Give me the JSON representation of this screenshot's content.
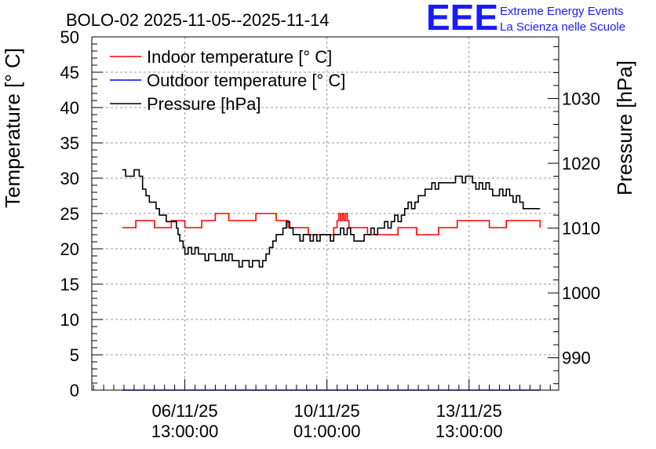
{
  "chart_data": {
    "type": "line",
    "title": "BOLO-02 2025-11-05--2025-11-14",
    "ylabel": "Temperature [° C]",
    "y2label": "Pressure [hPa]",
    "ylim": [
      0,
      50
    ],
    "y2lim": [
      985,
      1039.5
    ],
    "yticks": [
      "0",
      "5",
      "10",
      "15",
      "20",
      "25",
      "30",
      "35",
      "40",
      "45",
      "50"
    ],
    "y2ticks": [
      "990",
      "1000",
      "1010",
      "1020",
      "1030"
    ],
    "x_tick_labels": [
      {
        "date": "06/11/25",
        "time": "13:00:00",
        "x": 0
      },
      {
        "date": "10/11/25",
        "time": "01:00:00",
        "x": 84
      },
      {
        "date": "13/11/25",
        "time": "13:00:00",
        "x": 168
      }
    ],
    "xlim": [
      -55,
      221
    ],
    "x_unit": "hours from 06/11/25 13:00:00",
    "grid": true,
    "legend_position": "top-left",
    "series": [
      {
        "name": "Indoor temperature [° C]",
        "axis": "left",
        "color": "#ff0000",
        "x": [
          -37,
          -32,
          -29,
          -24,
          -18,
          -12,
          -8,
          -3,
          0,
          5,
          10,
          12,
          18,
          24,
          26,
          31,
          40,
          42,
          47,
          54,
          56,
          61,
          70,
          73,
          80,
          86,
          88,
          90,
          91,
          92,
          93,
          94,
          95,
          96,
          97,
          103,
          108,
          114,
          120,
          126,
          132,
          137,
          144,
          150,
          156,
          161,
          168,
          174,
          180,
          184,
          190,
          198,
          204,
          210
        ],
        "y": [
          23,
          23,
          24,
          24,
          23,
          23,
          24,
          24,
          23,
          23,
          24,
          24,
          25,
          25,
          24,
          24,
          24,
          25,
          25,
          24,
          24,
          23,
          23,
          22,
          22,
          22,
          23,
          24,
          25,
          24,
          25,
          24,
          25,
          24,
          23,
          23,
          22,
          22,
          22,
          23,
          23,
          22,
          22,
          23,
          23,
          24,
          24,
          24,
          23,
          23,
          24,
          24,
          24,
          23
        ]
      },
      {
        "name": "Outdoor temperature [° C]",
        "axis": "left",
        "color": "#0000ff",
        "x": [
          -37,
          210
        ],
        "y": [
          0,
          0
        ]
      },
      {
        "name": "Pressure [hPa]",
        "axis": "right",
        "color": "#000000",
        "x": [
          -37,
          -35,
          -33,
          -30,
          -27,
          -25,
          -23,
          -21,
          -19,
          -17,
          -15,
          -13,
          -11,
          -9,
          -7,
          -5,
          -4,
          -3,
          -1,
          0,
          2,
          4,
          6,
          8,
          10,
          12,
          14,
          16,
          18,
          20,
          22,
          24,
          26,
          28,
          30,
          32,
          34,
          36,
          38,
          40,
          42,
          44,
          46,
          48,
          50,
          52,
          54,
          56,
          58,
          60,
          62,
          64,
          66,
          68,
          70,
          72,
          74,
          76,
          78,
          80,
          82,
          84,
          86,
          88,
          90,
          92,
          94,
          96,
          98,
          100,
          102,
          104,
          106,
          108,
          110,
          112,
          114,
          116,
          118,
          120,
          122,
          124,
          126,
          128,
          130,
          132,
          134,
          136,
          138,
          140,
          142,
          144,
          146,
          148,
          150,
          152,
          154,
          156,
          158,
          160,
          162,
          164,
          166,
          168,
          170,
          172,
          174,
          176,
          178,
          180,
          182,
          184,
          186,
          188,
          190,
          192,
          194,
          196,
          198,
          200,
          202,
          204,
          206,
          208,
          210
        ],
        "y": [
          1019,
          1018,
          1018,
          1019,
          1018,
          1016,
          1015,
          1014,
          1014,
          1013,
          1012,
          1012,
          1011,
          1011,
          1011,
          1010,
          1009,
          1008,
          1007,
          1006,
          1007,
          1006,
          1007,
          1006,
          1006,
          1005,
          1006,
          1006,
          1005,
          1005,
          1006,
          1005,
          1006,
          1005,
          1005,
          1004,
          1005,
          1005,
          1004,
          1005,
          1005,
          1004,
          1005,
          1006,
          1007,
          1008,
          1009,
          1009,
          1010,
          1011,
          1010,
          1009,
          1009,
          1008,
          1009,
          1009,
          1008,
          1009,
          1008,
          1009,
          1009,
          1009,
          1008,
          1009,
          1009,
          1010,
          1009,
          1010,
          1009,
          1008,
          1008,
          1008,
          1009,
          1009,
          1010,
          1009,
          1010,
          1010,
          1011,
          1010,
          1011,
          1012,
          1011,
          1012,
          1013,
          1014,
          1013,
          1014,
          1015,
          1015,
          1016,
          1016,
          1017,
          1016,
          1017,
          1017,
          1017,
          1017,
          1017,
          1018,
          1018,
          1017,
          1018,
          1018,
          1017,
          1016,
          1017,
          1016,
          1017,
          1016,
          1015,
          1015,
          1016,
          1015,
          1016,
          1015,
          1014,
          1015,
          1014,
          1013,
          1013,
          1013,
          1013,
          1013,
          1013
        ]
      }
    ]
  },
  "logo": {
    "mark": "EEE",
    "line1": "Extreme Energy Events",
    "line2": "La Scienza nelle Scuole"
  }
}
